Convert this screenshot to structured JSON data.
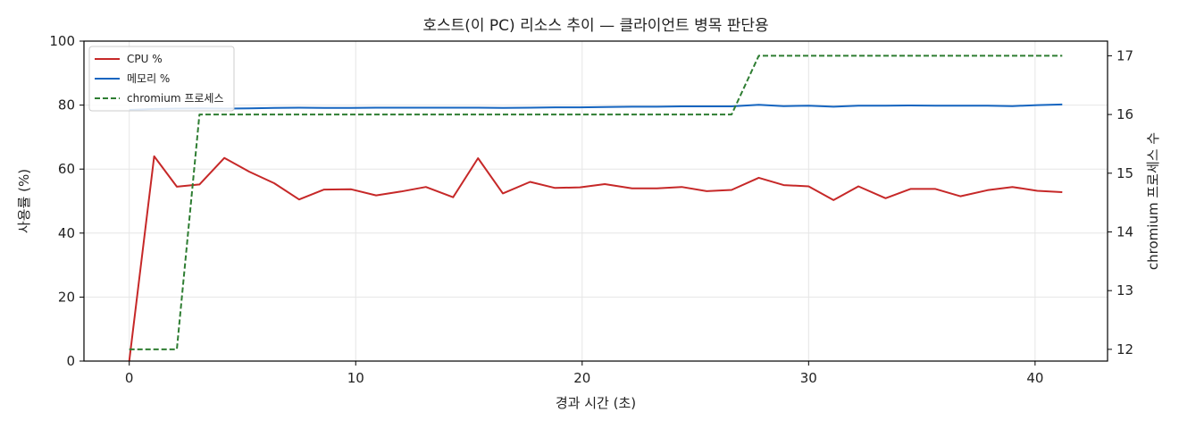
{
  "chart_data": {
    "type": "line",
    "title": "호스트(이 PC) 리소스 추이 — 클라이언트 병목 판단용",
    "xlabel": "경과 시간 (초)",
    "ylabel": "사용률 (%)",
    "y2label": "chromium 프로세스 수",
    "xlim": [
      -2,
      43.2
    ],
    "ylim": [
      0,
      100
    ],
    "y2lim": [
      11.8,
      17.25
    ],
    "xticks": [
      0,
      10,
      20,
      30,
      40
    ],
    "yticks": [
      0,
      20,
      40,
      60,
      80,
      100
    ],
    "y2ticks": [
      12,
      13,
      14,
      15,
      16,
      17
    ],
    "grid": true,
    "legend_position": "top-left",
    "series": [
      {
        "name": "CPU %",
        "axis": "left",
        "color": "#c62828",
        "style": "solid",
        "x": [
          0,
          1.1,
          2.1,
          3.1,
          4.2,
          5.3,
          6.4,
          7.5,
          8.6,
          9.8,
          10.9,
          12.0,
          13.1,
          14.3,
          15.4,
          16.5,
          17.7,
          18.8,
          19.9,
          21.0,
          22.2,
          23.3,
          24.4,
          25.5,
          26.6,
          27.8,
          28.9,
          30.0,
          31.1,
          32.2,
          33.4,
          34.5,
          35.6,
          36.7,
          37.9,
          39.0,
          40.1,
          41.2
        ],
        "values": [
          0,
          64.0,
          54.5,
          55.2,
          63.5,
          59.2,
          55.6,
          50.5,
          53.6,
          53.7,
          51.8,
          53.0,
          54.4,
          51.2,
          63.4,
          52.4,
          56.0,
          54.1,
          54.3,
          55.3,
          54.0,
          54.0,
          54.4,
          53.1,
          53.5,
          57.3,
          55.0,
          54.6,
          50.3,
          54.6,
          50.9,
          53.8,
          53.8,
          51.5,
          53.4,
          54.4,
          53.2,
          52.8
        ]
      },
      {
        "name": "메모리 %",
        "axis": "left",
        "color": "#1565c0",
        "style": "solid",
        "x": [
          0,
          1.1,
          2.1,
          3.1,
          4.2,
          5.3,
          6.4,
          7.5,
          8.6,
          9.8,
          10.9,
          12.0,
          13.1,
          14.3,
          15.4,
          16.5,
          17.7,
          18.8,
          19.9,
          21.0,
          22.2,
          23.3,
          24.4,
          25.5,
          26.6,
          27.8,
          28.9,
          30.0,
          31.1,
          32.2,
          33.4,
          34.5,
          35.6,
          36.7,
          37.9,
          39.0,
          40.1,
          41.2
        ],
        "values": [
          78.5,
          78.8,
          78.9,
          79.0,
          78.9,
          79.0,
          79.1,
          79.2,
          79.1,
          79.1,
          79.2,
          79.2,
          79.2,
          79.2,
          79.2,
          79.1,
          79.2,
          79.3,
          79.3,
          79.4,
          79.5,
          79.5,
          79.6,
          79.6,
          79.6,
          80.1,
          79.7,
          79.8,
          79.5,
          79.8,
          79.8,
          79.9,
          79.8,
          79.8,
          79.8,
          79.7,
          80.0,
          80.2
        ]
      },
      {
        "name": "chromium 프로세스",
        "axis": "right",
        "color": "#2e7d32",
        "style": "dashed",
        "x": [
          0,
          2.1,
          3.1,
          26.6,
          27.8,
          41.2
        ],
        "values": [
          12,
          12,
          16,
          16,
          17,
          17
        ]
      }
    ]
  }
}
